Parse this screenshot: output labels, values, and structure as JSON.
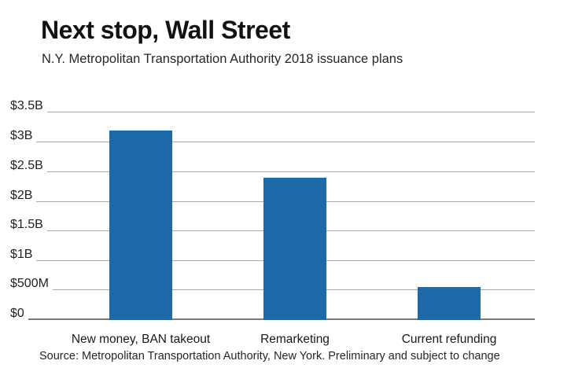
{
  "header": {
    "title": "Next stop, Wall Street",
    "subtitle": "N.Y. Metropolitan Transportation Authority 2018 issuance plans"
  },
  "chart_data": {
    "type": "bar",
    "title": "Next stop, Wall Street",
    "subtitle": "N.Y. Metropolitan Transportation Authority 2018 issuance plans",
    "categories": [
      "New money, BAN takeout",
      "Remarketing",
      "Current refunding"
    ],
    "values": [
      3.2,
      2.4,
      0.56
    ],
    "unit": "USD billions",
    "y_ticks": [
      "$3.5B",
      "$3B",
      "$2.5B",
      "$2B",
      "$1.5B",
      "$1B",
      "$500M",
      "$0"
    ],
    "ylim": [
      0,
      3.5
    ],
    "grid": true,
    "legend": "none",
    "bar_color": "#1e6aa8",
    "gridline_color": "#a9a9a9",
    "baseline_color": "#7a7a7a"
  },
  "footer": {
    "source": "Source: Metropolitan Transportation Authority, New York. Preliminary and subject to change"
  }
}
